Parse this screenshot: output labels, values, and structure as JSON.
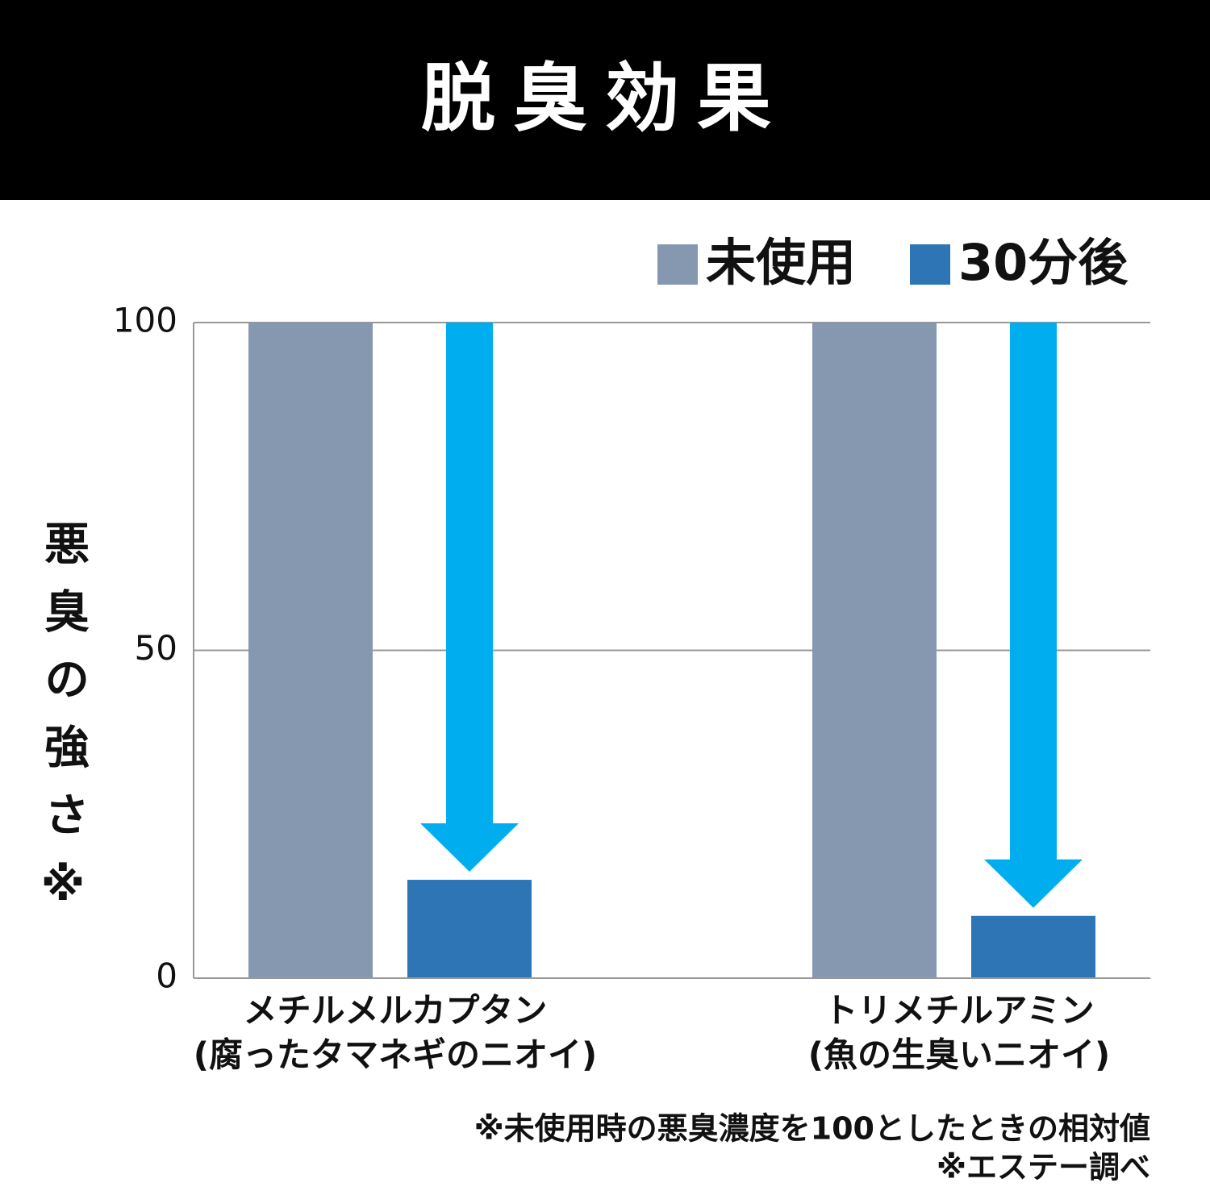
{
  "chart_data": {
    "type": "bar",
    "title": "脱臭効果",
    "y_label": "悪臭の強さ※",
    "categories": [
      [
        "メチルメルカプタン",
        "(腐ったタマネギのニオイ)"
      ],
      [
        "トリメチルアミン",
        "(魚の生臭いニオイ)"
      ]
    ],
    "series": [
      {
        "name": "未使用",
        "color": "#8697b0",
        "values": [
          100,
          100
        ]
      },
      {
        "name": "30分後",
        "color": "#2e75b6",
        "values": [
          15,
          9.5
        ]
      }
    ],
    "ylim": [
      0,
      100
    ],
    "yticks": [
      0,
      50,
      100
    ],
    "grid": true,
    "legend": "top-right",
    "notes": [
      "※未使用時の悪臭濃度を100としたときの相対値",
      "※エステー調べ"
    ]
  }
}
